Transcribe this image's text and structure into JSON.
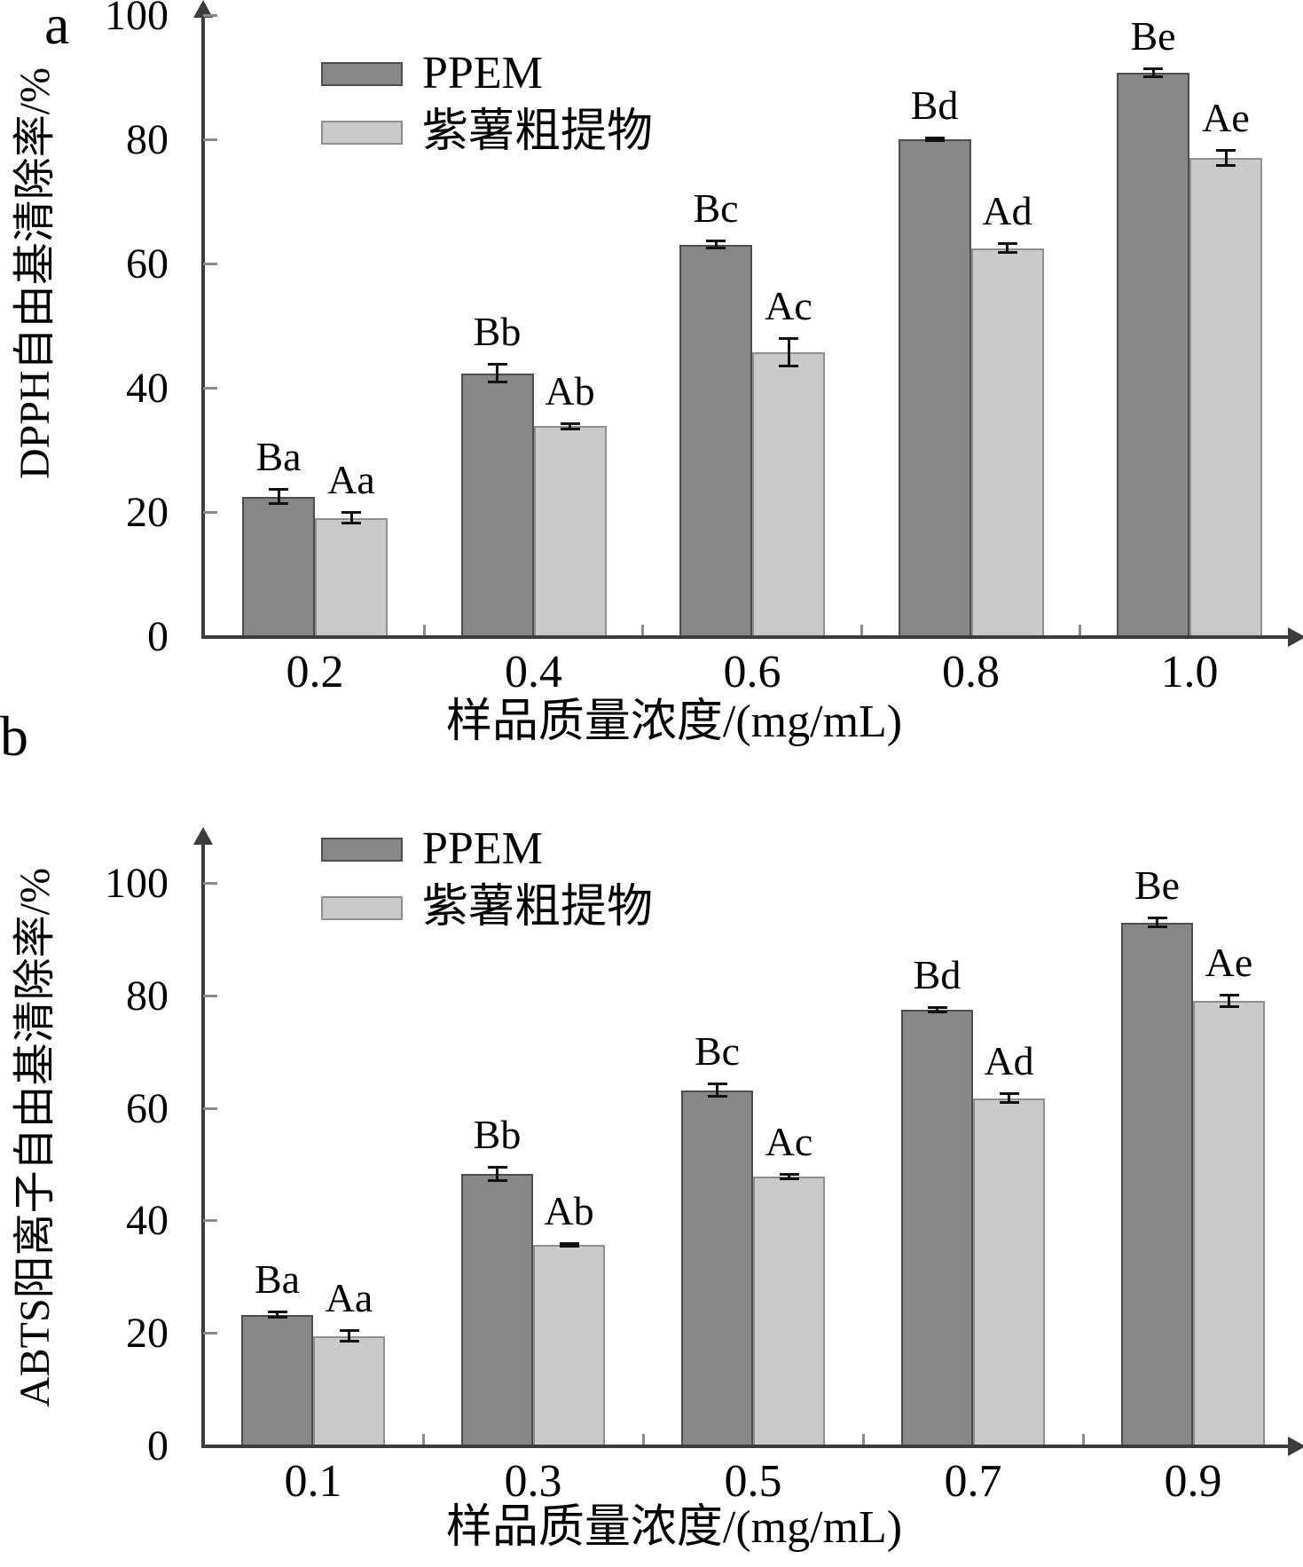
{
  "figure": {
    "background": "#ffffff"
  },
  "colors": {
    "ppem_fill": "#878787",
    "ppem_border": "#4d4d4d",
    "crude_fill": "#cacaca",
    "crude_border": "#8f8f8f",
    "axis": "#3c3c3c",
    "tick": "#8a8a8a",
    "error_bar": "#111111",
    "text": "#000000"
  },
  "chart_data": [
    {
      "type": "bar",
      "panel_label": "a",
      "title": "",
      "ylabel": "DPPH自由基清除率/%",
      "xlabel": "样品质量浓度/(mg/mL)",
      "categories": [
        "0.2",
        "0.4",
        "0.6",
        "0.8",
        "1.0"
      ],
      "y_ticks": [
        0,
        20,
        40,
        60,
        80,
        100
      ],
      "ylim": [
        0,
        110
      ],
      "grid": false,
      "legend_position": "upper-left-inside",
      "series": [
        {
          "name": "PPEM",
          "values": [
            22.6,
            42.5,
            63.2,
            80.2,
            90.9
          ],
          "errors": [
            1.2,
            1.5,
            0.6,
            0.3,
            0.7
          ],
          "sig_labels": [
            "Ba",
            "Bb",
            "Bc",
            "Bd",
            "Be"
          ]
        },
        {
          "name": "紫薯粗提物",
          "values": [
            19.2,
            34.0,
            45.9,
            62.6,
            77.2
          ],
          "errors": [
            0.9,
            0.5,
            2.3,
            0.8,
            1.3
          ],
          "sig_labels": [
            "Aa",
            "Ab",
            "Ac",
            "Ad",
            "Ae"
          ]
        }
      ]
    },
    {
      "type": "bar",
      "panel_label": "b",
      "title": "",
      "ylabel": "ABTS阳离子自由基清除率/%",
      "xlabel": "样品质量浓度/(mg/mL)",
      "categories": [
        "0.1",
        "0.3",
        "0.5",
        "0.7",
        "0.9"
      ],
      "y_ticks": [
        0,
        20,
        40,
        60,
        80,
        100
      ],
      "ylim": [
        0,
        110
      ],
      "grid": false,
      "legend_position": "upper-left-inside",
      "series": [
        {
          "name": "PPEM",
          "values": [
            23.4,
            48.4,
            63.3,
            77.6,
            93.1
          ],
          "errors": [
            0.5,
            1.3,
            1.2,
            0.4,
            0.9
          ],
          "sig_labels": [
            "Ba",
            "Bb",
            "Bc",
            "Bd",
            "Be"
          ]
        },
        {
          "name": "紫薯粗提物",
          "values": [
            19.6,
            35.8,
            48.0,
            61.9,
            79.2
          ],
          "errors": [
            1.0,
            0.3,
            0.5,
            0.8,
            1.1
          ],
          "sig_labels": [
            "Aa",
            "Ab",
            "Ac",
            "Ad",
            "Ae"
          ]
        }
      ]
    }
  ]
}
